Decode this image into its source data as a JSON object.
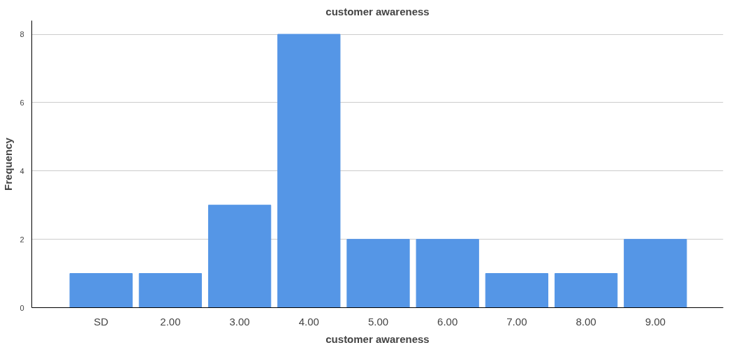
{
  "chart_data": {
    "type": "bar",
    "title": "customer awareness",
    "xlabel": "customer awareness",
    "ylabel": "Frequency",
    "categories": [
      "SD",
      "2.00",
      "3.00",
      "4.00",
      "5.00",
      "6.00",
      "7.00",
      "8.00",
      "9.00"
    ],
    "values": [
      1,
      1,
      3,
      8,
      2,
      2,
      1,
      1,
      2
    ],
    "color": "#5596e6",
    "ylim": [
      0,
      8.4
    ],
    "yticks": [
      0,
      2,
      4,
      6,
      8
    ],
    "grid": "y"
  }
}
